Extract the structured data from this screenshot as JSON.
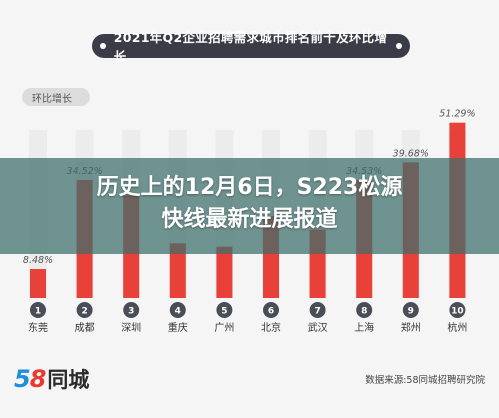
{
  "header": {
    "title": "2021年Q2企业招聘需求城市排名前十及环比增长"
  },
  "legend": {
    "label": "环比增长"
  },
  "overlay": {
    "line1": "历史上的12月6日，S223松源",
    "line2": "快线最新进展报道"
  },
  "footer": {
    "logo_num": "58",
    "logo_text": "同城",
    "source": "数据来源:58同城招聘研究院"
  },
  "colors": {
    "bar_red": "#e8413a",
    "bar_highlight": "#e8413a",
    "rank_circle": "#4a4d57"
  },
  "chart_data": {
    "type": "bar",
    "title": "2021年Q2企业招聘需求城市排名前十及环比增长",
    "xlabel": "",
    "ylabel": "",
    "ylim": [
      0,
      55
    ],
    "categories": [
      "东莞",
      "成都",
      "深圳",
      "重庆",
      "广州",
      "北京",
      "武汉",
      "上海",
      "郑州",
      "杭州"
    ],
    "ranks": [
      "1",
      "2",
      "3",
      "4",
      "5",
      "6",
      "7",
      "8",
      "9",
      "10"
    ],
    "series": [
      {
        "name": "环比增长",
        "values": [
          8.48,
          34.52,
          30.0,
          16.0,
          15.0,
          24.0,
          20.0,
          34.53,
          39.68,
          51.29
        ],
        "labels": [
          "8.48%",
          "34.52%",
          "",
          "",
          "",
          "",
          "",
          "34.53%",
          "39.68%",
          "51.29%"
        ]
      }
    ],
    "grid": false,
    "legend_position": "top-left"
  }
}
